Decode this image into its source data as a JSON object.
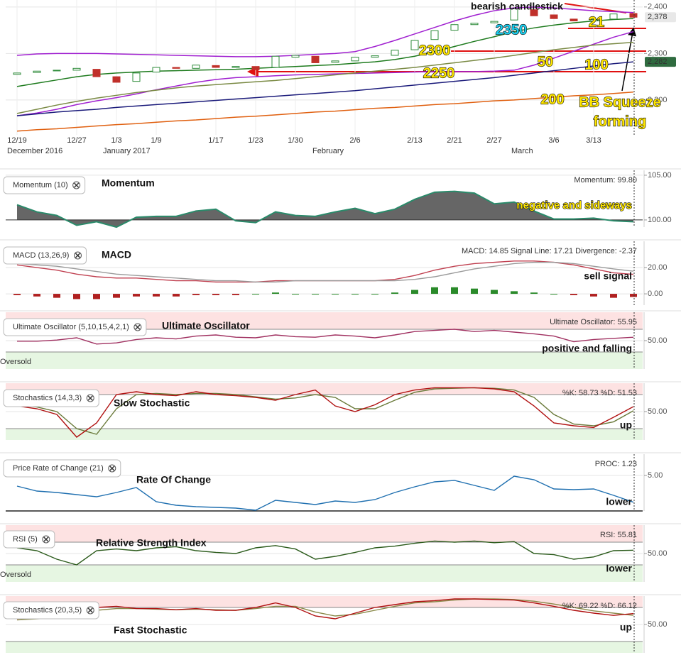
{
  "chart_data": [
    {
      "type": "candlestick",
      "categories": [
        "12/19",
        null,
        null,
        "12/27",
        null,
        "1/3",
        null,
        "1/9",
        null,
        null,
        "1/17",
        null,
        "1/23",
        null,
        "1/30",
        null,
        null,
        "2/6",
        null,
        null,
        "2/13",
        null,
        "2/21",
        null,
        "2/27",
        null,
        null,
        "3/6",
        null,
        "3/13",
        null,
        null
      ],
      "month_labels": [
        "December 2016",
        "January 2017",
        "February",
        "March"
      ],
      "open": [
        2255,
        2259,
        2263,
        2264,
        2266,
        2250,
        2240,
        2260,
        2270,
        2268,
        2274,
        2270,
        2272,
        2270,
        2292,
        2294,
        2281,
        2284,
        2292,
        2296,
        2308,
        2330,
        2350,
        2362,
        2366,
        2372,
        2394,
        2383,
        2374,
        2370,
        2374,
        2386
      ],
      "close": [
        2258,
        2262,
        2264,
        2268,
        2250,
        2238,
        2258,
        2270,
        2268,
        2275,
        2270,
        2272,
        2265,
        2294,
        2296,
        2280,
        2284,
        2292,
        2295,
        2307,
        2328,
        2349,
        2362,
        2365,
        2369,
        2396,
        2381,
        2375,
        2370,
        2373,
        2385,
        2378
      ],
      "up_color": "#2e8b3a",
      "down_color": "#c0302a",
      "series": [
        {
          "color": "#a020d0",
          "values": [
            2296,
            2299,
            2300,
            2300,
            2300,
            2299,
            2298,
            2297,
            2296,
            2295,
            2294,
            2293,
            2293,
            2294,
            2296,
            2298,
            2300,
            2304,
            2315,
            2328,
            2342,
            2356,
            2370,
            2382,
            2392,
            2398,
            2400,
            2398,
            2395,
            2392,
            2390,
            2388
          ]
        },
        {
          "color": "#a020d0",
          "values": [
            2166,
            2172,
            2180,
            2190,
            2198,
            2205,
            2213,
            2222,
            2230,
            2238,
            2244,
            2248,
            2250,
            2252,
            2254,
            2255,
            2256,
            2257,
            2258,
            2259,
            2260,
            2261,
            2261,
            2261,
            2262,
            2264,
            2275,
            2290,
            2305,
            2320,
            2335,
            2347
          ]
        },
        {
          "color": "#1e7b1e",
          "values": [
            2229,
            2236,
            2243,
            2250,
            2255,
            2258,
            2260,
            2262,
            2263,
            2264,
            2265,
            2266,
            2268,
            2270,
            2272,
            2274,
            2276,
            2279,
            2282,
            2287,
            2294,
            2304,
            2315,
            2326,
            2336,
            2347,
            2355,
            2361,
            2366,
            2370,
            2373,
            2375
          ]
        },
        {
          "color": "#7a8a44",
          "values": [
            2171,
            2180,
            2189,
            2197,
            2204,
            2210,
            2216,
            2221,
            2226,
            2230,
            2233,
            2236,
            2239,
            2242,
            2246,
            2250,
            2254,
            2258,
            2262,
            2266,
            2270,
            2275,
            2280,
            2285,
            2290,
            2296,
            2302,
            2308,
            2313,
            2318,
            2321,
            2324
          ]
        },
        {
          "color": "#1a1a7a",
          "values": [
            2166,
            2170,
            2174,
            2177,
            2180,
            2184,
            2187,
            2190,
            2193,
            2196,
            2199,
            2202,
            2205,
            2208,
            2211,
            2214,
            2217,
            2220,
            2224,
            2228,
            2232,
            2236,
            2240,
            2244,
            2248,
            2253,
            2258,
            2263,
            2268,
            2273,
            2278,
            2282
          ]
        },
        {
          "color": "#e06010",
          "values": [
            2133,
            2136,
            2138,
            2141,
            2144,
            2147,
            2149,
            2152,
            2155,
            2157,
            2160,
            2163,
            2165,
            2168,
            2171,
            2174,
            2176,
            2179,
            2182,
            2184,
            2187,
            2190,
            2192,
            2195,
            2198,
            2200,
            2203,
            2206,
            2209,
            2211,
            2214,
            2217
          ]
        }
      ],
      "ylim": [
        2125,
        2415
      ],
      "yticks": [
        {
          "value": 2200,
          "label": "2,200"
        },
        {
          "value": 2300,
          "label": "2,300"
        },
        {
          "value": 2400,
          "label": "2,400"
        }
      ],
      "price_labels": [
        {
          "value": 2378,
          "label": "2,378"
        },
        {
          "value": 2282,
          "label": "2,282"
        }
      ],
      "annotations": [
        "bearish candlestick",
        "2350",
        "21",
        "2300",
        "50",
        "100",
        "2250",
        "200",
        "BB Squeeze",
        "forming"
      ]
    },
    {
      "type": "area",
      "legend_label": "Momentum (10)",
      "title": "Momentum",
      "readout": "Momentum: 99.80",
      "comment": "negative and sideways",
      "baseline": 100,
      "fill": "#666666",
      "series": [
        {
          "color": "#2a8a6a",
          "values": [
            101.7,
            100.9,
            100.5,
            99.4,
            99.8,
            99.2,
            100.3,
            100.4,
            100.4,
            101.0,
            101.2,
            99.9,
            99.7,
            100.9,
            100.5,
            100.4,
            100.9,
            101.3,
            100.7,
            101.2,
            102.3,
            103.1,
            103.2,
            103.0,
            101.8,
            102.0,
            101.0,
            100.1,
            100.1,
            100.2,
            99.9,
            99.8
          ]
        }
      ],
      "ylim": [
        99.2,
        105.55
      ],
      "yticks": [
        {
          "value": 100,
          "label": "100.00"
        },
        {
          "value": 105,
          "label": "105.00"
        }
      ]
    },
    {
      "type": "line",
      "legend_label": "MACD (13,26,9)",
      "title": "MACD",
      "readout": "MACD: 14.85 Signal Line: 17.21 Divergence: -2.37",
      "comment": "sell signal",
      "series": [
        {
          "style": "bar",
          "up_color": "#2a8a2a",
          "down_color": "#b02020",
          "values": [
            -1,
            -2,
            -3,
            -4,
            -4,
            -3,
            -2,
            -2,
            -2,
            -1,
            -1,
            -1,
            0,
            1,
            0,
            0,
            0,
            0,
            0,
            1,
            3,
            5,
            5,
            4,
            3,
            2,
            1,
            0,
            -1,
            -2,
            -3,
            -2.37
          ]
        },
        {
          "color": "#c04050",
          "values": [
            22,
            20,
            18,
            15,
            13,
            12,
            12,
            11,
            10,
            10,
            9,
            9,
            9,
            10,
            10,
            10,
            10,
            10,
            10,
            11,
            14,
            18,
            21,
            23,
            24,
            25,
            25,
            24,
            22,
            19,
            16,
            14.85
          ]
        },
        {
          "color": "#9a9a9a",
          "values": [
            23,
            22,
            21,
            19,
            17,
            15,
            14,
            13,
            12,
            11,
            10,
            10,
            9,
            9,
            10,
            10,
            10,
            10,
            10,
            10,
            11,
            13,
            16,
            19,
            21,
            23,
            24,
            24,
            23,
            21,
            19,
            17.21
          ]
        }
      ],
      "ylim": [
        -8.6,
        40
      ],
      "yticks": [
        {
          "value": 0,
          "label": "0.00"
        },
        {
          "value": 20,
          "label": "20.00"
        }
      ]
    },
    {
      "type": "line",
      "legend_label": "Ultimate Oscillator (5,10,15,4,2,1)",
      "title": "Ultimate Oscillator",
      "readout": "Ultimate Oscillator: 55.95",
      "comment": "positive and falling",
      "band_label": "Oversold",
      "overbought": 70,
      "oversold": 30,
      "series": [
        {
          "color": "#a03060",
          "values": [
            49,
            49,
            51,
            55,
            44,
            46,
            52,
            55,
            53,
            58,
            60,
            56,
            55,
            60,
            57,
            56,
            60,
            58,
            55,
            60,
            66,
            68,
            70,
            66,
            68,
            65,
            62,
            58,
            48,
            52,
            54,
            55.95
          ]
        }
      ],
      "ylim": [
        0,
        100
      ],
      "yticks": [
        {
          "value": 50,
          "label": "50.00"
        }
      ]
    },
    {
      "type": "line",
      "legend_label": "Stochastics (14,3,3)",
      "title": "Slow Stochastic",
      "readout": "%K: 58.73 %D: 51.53",
      "comment": "up",
      "overbought": 80,
      "oversold": 20,
      "series": [
        {
          "color": "#6a7a3a",
          "values": [
            62,
            58,
            50,
            20,
            10,
            55,
            80,
            82,
            80,
            82,
            82,
            80,
            76,
            72,
            74,
            80,
            75,
            55,
            55,
            70,
            84,
            90,
            91,
            92,
            91,
            88,
            75,
            45,
            28,
            25,
            32,
            51.53
          ]
        },
        {
          "color": "#b01010",
          "values": [
            60,
            55,
            45,
            5,
            30,
            80,
            85,
            80,
            78,
            85,
            80,
            78,
            75,
            70,
            80,
            88,
            60,
            50,
            62,
            80,
            88,
            92,
            92,
            92,
            90,
            85,
            60,
            30,
            25,
            22,
            40,
            58.73
          ]
        }
      ],
      "ylim": [
        0,
        100
      ],
      "yticks": [
        {
          "value": 50,
          "label": "50.00"
        }
      ]
    },
    {
      "type": "line",
      "legend_label": "Price Rate of Change (21)",
      "title": "Rate Of Change",
      "readout": "PROC: 1.23",
      "comment": "lower",
      "series": [
        {
          "color": "#2070b0",
          "values": [
            3.5,
            2.8,
            2.6,
            2.3,
            2.0,
            2.6,
            3.3,
            1.3,
            0.8,
            0.6,
            0.5,
            0.4,
            0.1,
            1.5,
            1.2,
            0.9,
            1.4,
            1.2,
            1.6,
            2.6,
            3.4,
            4.1,
            4.3,
            3.6,
            2.9,
            4.9,
            4.4,
            3.1,
            3.0,
            3.1,
            2.2,
            1.23
          ]
        }
      ],
      "ylim": [
        0,
        8
      ],
      "yticks": [
        {
          "value": 5,
          "label": "5.00"
        }
      ]
    },
    {
      "type": "line",
      "legend_label": "RSI (5)",
      "title": "Relative Strength Index",
      "readout": "RSI: 55.81",
      "comment": "lower",
      "band_label": "Oversold",
      "overbought": 70,
      "oversold": 30,
      "series": [
        {
          "color": "#2a5a1a",
          "values": [
            60,
            55,
            40,
            30,
            55,
            58,
            55,
            60,
            62,
            55,
            52,
            50,
            60,
            64,
            58,
            40,
            45,
            52,
            60,
            63,
            68,
            72,
            70,
            72,
            69,
            71,
            50,
            48,
            40,
            44,
            55,
            55.81
          ]
        }
      ],
      "ylim": [
        0,
        100
      ],
      "yticks": [
        {
          "value": 50,
          "label": "50.00"
        }
      ]
    },
    {
      "type": "line",
      "legend_label": "Stochastics (20,3,5)",
      "title": "Fast Stochastic",
      "readout": "%K: 69.22 %D: 66.12",
      "comment": "up",
      "overbought": 80,
      "oversold": 20,
      "series": [
        {
          "color": "#8a8a4a",
          "values": [
            58,
            60,
            62,
            70,
            75,
            78,
            78,
            77,
            76,
            77,
            76,
            75,
            78,
            82,
            82,
            72,
            65,
            68,
            75,
            82,
            88,
            90,
            93,
            95,
            95,
            94,
            91,
            86,
            80,
            74,
            70,
            66.12
          ]
        },
        {
          "color": "#b01010",
          "values": [
            60,
            62,
            65,
            75,
            80,
            82,
            78,
            78,
            76,
            78,
            75,
            75,
            80,
            88,
            80,
            65,
            60,
            70,
            80,
            85,
            90,
            92,
            95,
            95,
            94,
            93,
            88,
            82,
            75,
            70,
            66,
            69.22
          ]
        }
      ],
      "ylim": [
        0,
        100
      ],
      "yticks": [
        {
          "value": 50,
          "label": "50.00"
        }
      ]
    }
  ]
}
